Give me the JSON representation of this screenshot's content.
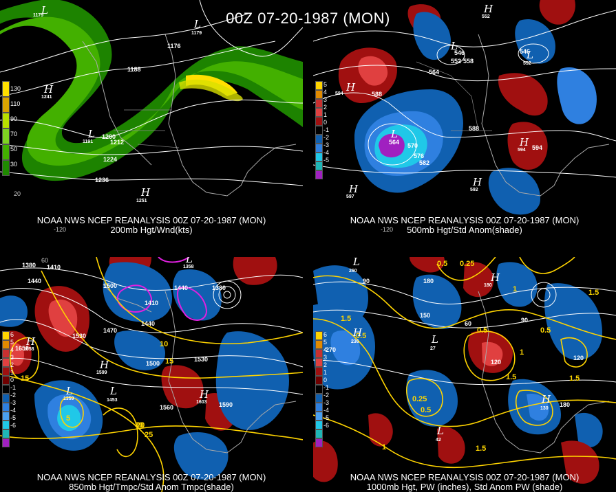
{
  "title": "00Z 07-20-1987 (MON)",
  "panels": [
    {
      "id": "p1",
      "source": "NOAA NWS NCEP REANALYSIS 00Z 07-20-1987 (MON)",
      "product": "200mb Hgt/Wnd(kts)",
      "legend": [
        "130",
        "110",
        "90",
        "70",
        "50",
        "30"
      ],
      "legend_colors": [
        "#ffe000",
        "#d9a400",
        "#b8e000",
        "#7ed321",
        "#43b000",
        "#1f8a00"
      ],
      "contour_labels": [
        "1176",
        "1176",
        "1188",
        "1200",
        "1212",
        "1224",
        "1236"
      ],
      "highs": [
        "1241",
        "1251"
      ],
      "lows": [
        "1179",
        "1179",
        "1191"
      ],
      "edge_labels": [
        "-120",
        "20"
      ]
    },
    {
      "id": "p2",
      "source": "NOAA NWS NCEP REANALYSIS 00Z 07-20-1987 (MON)",
      "product": "500mb Hgt/Std Anom(shade)",
      "legend": [
        "5",
        "4",
        "3",
        "2",
        "1",
        "0",
        "-1",
        "-2",
        "-3",
        "-4",
        "-5"
      ],
      "legend_colors": [
        "#ffd400",
        "#e08a00",
        "#c83030",
        "#e04040",
        "#a01010",
        "#000000",
        "#1060b0",
        "#2f80e0",
        "#20c8e8",
        "#1fb6b6",
        "#a020c0"
      ],
      "contour_labels": [
        "564",
        "552",
        "558",
        "546",
        "546",
        "552",
        "588",
        "564",
        "570",
        "576",
        "582",
        "588",
        "594",
        "564"
      ],
      "highs": [
        "594",
        "597",
        "592",
        "594"
      ],
      "lows": [
        "564",
        "552",
        "546",
        "552"
      ],
      "edge_labels": [
        "-120"
      ]
    },
    {
      "id": "p3",
      "source": "NOAA NWS NCEP REANALYSIS 00Z 07-20-1987 (MON)",
      "product": "850mb Hgt/Tmpc/Std Anom Tmpc(shade)",
      "legend": [
        "6",
        "5",
        "4",
        "3",
        "2",
        "1",
        "0",
        "-1",
        "-2",
        "-3",
        "-4",
        "-5",
        "-6"
      ],
      "legend_colors": [
        "#ffd400",
        "#e08a00",
        "#c83030",
        "#e04040",
        "#a01010",
        "#700000",
        "#000000",
        "#1060b0",
        "#2f80e0",
        "#4aa0f0",
        "#20c8e8",
        "#1fb6b6",
        "#a020c0"
      ],
      "contour_labels": [
        "1380",
        "1410",
        "1440",
        "1470",
        "1500",
        "1530",
        "1440",
        "1500",
        "1530",
        "1560",
        "1590",
        "1380",
        "1410",
        "1440",
        "1560",
        "1650"
      ],
      "temp_labels": [
        "10",
        "15",
        "20",
        "25",
        "30",
        "10",
        "15",
        "5",
        "15"
      ],
      "highs": [
        "1658",
        "1599",
        "1603"
      ],
      "lows": [
        "1359",
        "1453",
        "1358",
        "1363"
      ],
      "edge_labels": [
        "60",
        "20"
      ]
    },
    {
      "id": "p4",
      "source": "NOAA NWS NCEP REANALYSIS 00Z 07-20-1987 (MON)",
      "product": "1000mb Hgt, PW (inches), Std Anom PW (shade)",
      "legend": [
        "6",
        "5",
        "4",
        "3",
        "2",
        "1",
        "0",
        "-1",
        "-2",
        "-3",
        "-4",
        "-5",
        "-6"
      ],
      "legend_colors": [
        "#ffd400",
        "#e08a00",
        "#c83030",
        "#e04040",
        "#a01010",
        "#700000",
        "#000000",
        "#1060b0",
        "#2f80e0",
        "#4aa0f0",
        "#20c8e8",
        "#1fb6b6",
        "#a020c0"
      ],
      "contour_labels": [
        "90",
        "180",
        "150",
        "270",
        "120",
        "120",
        "180",
        "90",
        "60"
      ],
      "pw_labels": [
        "0.5",
        "0.25",
        "1.5",
        "0.5",
        "1",
        "0.5",
        "0.25",
        "0.5",
        "1.5",
        "1",
        "1.5",
        "0.5",
        "1.5",
        "1.5",
        "1"
      ],
      "highs": [
        "180",
        "236",
        "130"
      ],
      "lows": [
        "260",
        "27",
        "42"
      ],
      "edge_labels": [
        "20"
      ]
    }
  ]
}
